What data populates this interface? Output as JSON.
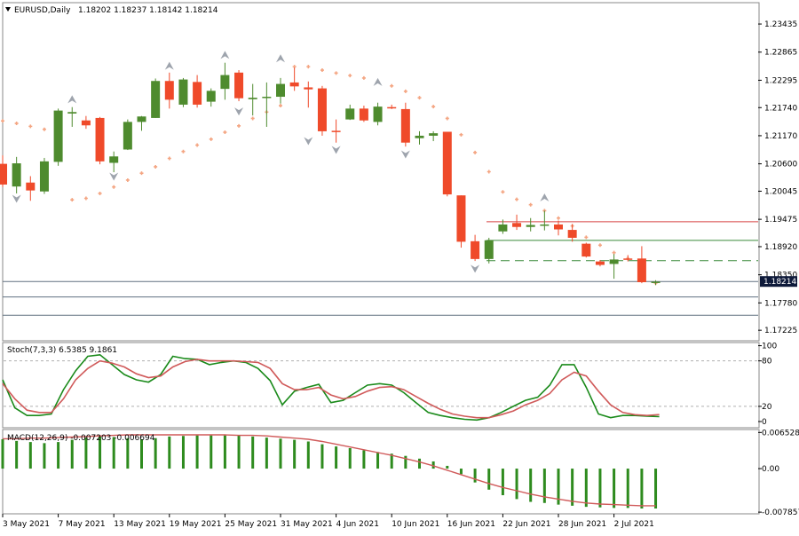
{
  "colors": {
    "bull": "#4e8b2e",
    "bear": "#ef4a2a",
    "sar": "#f4a582",
    "fractal": "#9ea4ad",
    "stoch_main": "#1a8a1a",
    "stoch_signal": "#d05a5a",
    "macd_hist": "#2e8b1e",
    "macd_signal": "#d05a5a",
    "hline_red": "#d64040",
    "hline_green": "#3a8a3a",
    "hline_dash": "#3a8a3a",
    "hline_gray": "#607080"
  },
  "header": {
    "symbol": "EURUSD,Daily",
    "ohlc": "1.18202 1.18237 1.18142 1.18214",
    "dropdown_icon": "triangle-down-icon"
  },
  "chart_data": [
    {
      "type": "candlestick",
      "title": "EURUSD,Daily",
      "ylim": [
        1.1703,
        1.2385
      ],
      "y_ticks": [
        "1.23435",
        "1.22865",
        "1.22295",
        "1.21740",
        "1.21170",
        "1.20600",
        "1.20045",
        "1.19475",
        "1.18920",
        "1.18350",
        "1.17780",
        "1.17225"
      ],
      "current_price": "1.18214",
      "x_tick_labels": [
        "3 May 2021",
        "7 May 2021",
        "13 May 2021",
        "19 May 2021",
        "25 May 2021",
        "31 May 2021",
        "4 Jun 2021",
        "10 Jun 2021",
        "16 Jun 2021",
        "22 Jun 2021",
        "28 Jun 2021",
        "2 Jul 2021"
      ],
      "candles": [
        {
          "o": 1.206,
          "h": 1.2077,
          "l": 1.2013,
          "c": 1.2018
        },
        {
          "o": 1.2014,
          "h": 1.2074,
          "l": 1.2,
          "c": 1.2061
        },
        {
          "o": 1.2022,
          "h": 1.2035,
          "l": 1.1985,
          "c": 1.2006
        },
        {
          "o": 1.2004,
          "h": 1.2072,
          "l": 1.1999,
          "c": 1.2065
        },
        {
          "o": 1.2064,
          "h": 1.2172,
          "l": 1.2056,
          "c": 1.2168
        },
        {
          "o": 1.2162,
          "h": 1.2175,
          "l": 1.2135,
          "c": 1.2165
        },
        {
          "o": 1.2148,
          "h": 1.2157,
          "l": 1.2131,
          "c": 1.2138
        },
        {
          "o": 1.2153,
          "h": 1.2155,
          "l": 1.2059,
          "c": 1.2065
        },
        {
          "o": 1.2062,
          "h": 1.2085,
          "l": 1.2043,
          "c": 1.2075
        },
        {
          "o": 1.2089,
          "h": 1.215,
          "l": 1.2088,
          "c": 1.2145
        },
        {
          "o": 1.2145,
          "h": 1.2157,
          "l": 1.2127,
          "c": 1.2156
        },
        {
          "o": 1.2153,
          "h": 1.2233,
          "l": 1.2153,
          "c": 1.2228
        },
        {
          "o": 1.2228,
          "h": 1.2245,
          "l": 1.2172,
          "c": 1.219
        },
        {
          "o": 1.218,
          "h": 1.2234,
          "l": 1.2175,
          "c": 1.2231
        },
        {
          "o": 1.2226,
          "h": 1.224,
          "l": 1.2174,
          "c": 1.218
        },
        {
          "o": 1.2186,
          "h": 1.2213,
          "l": 1.2176,
          "c": 1.2208
        },
        {
          "o": 1.2212,
          "h": 1.2265,
          "l": 1.219,
          "c": 1.224
        },
        {
          "o": 1.2245,
          "h": 1.225,
          "l": 1.2187,
          "c": 1.2193
        },
        {
          "o": 1.2191,
          "h": 1.2222,
          "l": 1.2158,
          "c": 1.2194
        },
        {
          "o": 1.2196,
          "h": 1.2225,
          "l": 1.2135,
          "c": 1.2196
        },
        {
          "o": 1.2196,
          "h": 1.2234,
          "l": 1.2182,
          "c": 1.2222
        },
        {
          "o": 1.2225,
          "h": 1.2255,
          "l": 1.2208,
          "c": 1.2217
        },
        {
          "o": 1.2215,
          "h": 1.2227,
          "l": 1.2174,
          "c": 1.2211
        },
        {
          "o": 1.2213,
          "h": 1.2218,
          "l": 1.2117,
          "c": 1.2126
        },
        {
          "o": 1.2127,
          "h": 1.215,
          "l": 1.2103,
          "c": 1.2125
        },
        {
          "o": 1.215,
          "h": 1.218,
          "l": 1.2149,
          "c": 1.2172
        },
        {
          "o": 1.2172,
          "h": 1.2178,
          "l": 1.2145,
          "c": 1.2148
        },
        {
          "o": 1.2145,
          "h": 1.2184,
          "l": 1.2138,
          "c": 1.2176
        },
        {
          "o": 1.2175,
          "h": 1.218,
          "l": 1.2171,
          "c": 1.2174
        },
        {
          "o": 1.2171,
          "h": 1.2184,
          "l": 1.2095,
          "c": 1.2103
        },
        {
          "o": 1.2112,
          "h": 1.2126,
          "l": 1.2099,
          "c": 1.2117
        },
        {
          "o": 1.2117,
          "h": 1.2126,
          "l": 1.2106,
          "c": 1.2122
        },
        {
          "o": 1.2125,
          "h": 1.2125,
          "l": 1.1994,
          "c": 1.1998
        },
        {
          "o": 1.1996,
          "h": 1.1996,
          "l": 1.189,
          "c": 1.1902
        },
        {
          "o": 1.1903,
          "h": 1.1916,
          "l": 1.1863,
          "c": 1.1867
        },
        {
          "o": 1.1867,
          "h": 1.191,
          "l": 1.1858,
          "c": 1.1905
        },
        {
          "o": 1.1923,
          "h": 1.1947,
          "l": 1.1918,
          "c": 1.1937
        },
        {
          "o": 1.194,
          "h": 1.1957,
          "l": 1.1926,
          "c": 1.1932
        },
        {
          "o": 1.1932,
          "h": 1.195,
          "l": 1.1923,
          "c": 1.1936
        },
        {
          "o": 1.1935,
          "h": 1.1965,
          "l": 1.1925,
          "c": 1.1937
        },
        {
          "o": 1.1937,
          "h": 1.1945,
          "l": 1.1915,
          "c": 1.1927
        },
        {
          "o": 1.1926,
          "h": 1.1938,
          "l": 1.1902,
          "c": 1.191
        },
        {
          "o": 1.1898,
          "h": 1.19,
          "l": 1.187,
          "c": 1.1872
        },
        {
          "o": 1.1862,
          "h": 1.1865,
          "l": 1.1852,
          "c": 1.1855
        },
        {
          "o": 1.1857,
          "h": 1.1877,
          "l": 1.1827,
          "c": 1.1866
        },
        {
          "o": 1.1868,
          "h": 1.1875,
          "l": 1.1862,
          "c": 1.1866
        },
        {
          "o": 1.1868,
          "h": 1.1893,
          "l": 1.1818,
          "c": 1.182
        },
        {
          "o": 1.182,
          "h": 1.1824,
          "l": 1.1814,
          "c": 1.1821
        }
      ],
      "parabolic_sar": [
        [
          0,
          1.2147
        ],
        [
          1,
          1.2142
        ],
        [
          2,
          1.2136
        ],
        [
          3,
          1.213
        ],
        [
          4,
          1.212
        ],
        [
          5,
          1.1987
        ],
        [
          6,
          1.199
        ],
        [
          7,
          1.2
        ],
        [
          8,
          1.2013
        ],
        [
          9,
          1.2027
        ],
        [
          10,
          1.2041
        ],
        [
          11,
          1.2054
        ],
        [
          12,
          1.2071
        ],
        [
          13,
          1.2085
        ],
        [
          14,
          1.2098
        ],
        [
          15,
          1.211
        ],
        [
          16,
          1.2124
        ],
        [
          17,
          1.2137
        ],
        [
          18,
          1.2152
        ],
        [
          19,
          1.2165
        ],
        [
          20,
          1.2178
        ],
        [
          21,
          1.2257
        ],
        [
          22,
          1.2257
        ],
        [
          23,
          1.225
        ],
        [
          24,
          1.2244
        ],
        [
          25,
          1.2239
        ],
        [
          26,
          1.2234
        ],
        [
          27,
          1.2227
        ],
        [
          28,
          1.2218
        ],
        [
          29,
          1.2207
        ],
        [
          30,
          1.2194
        ],
        [
          31,
          1.2176
        ],
        [
          32,
          1.2152
        ],
        [
          33,
          1.2119
        ],
        [
          34,
          1.2083
        ],
        [
          35,
          1.2044
        ],
        [
          36,
          1.2003
        ],
        [
          37,
          1.1988
        ],
        [
          38,
          1.1977
        ],
        [
          39,
          1.1965
        ],
        [
          40,
          1.195
        ],
        [
          41,
          1.1934
        ],
        [
          42,
          1.1911
        ],
        [
          43,
          1.1895
        ],
        [
          44,
          1.188
        ],
        [
          45,
          1.1868
        ],
        [
          46,
          1.1856
        ],
        [
          47,
          1.1818
        ]
      ],
      "fractals_up": [
        [
          5,
          1.219
        ],
        [
          12,
          1.2258
        ],
        [
          16,
          1.228
        ],
        [
          20,
          1.2273
        ],
        [
          27,
          1.2225
        ],
        [
          39,
          1.1991
        ]
      ],
      "fractals_down": [
        [
          1,
          1.199
        ],
        [
          8,
          1.2035
        ],
        [
          17,
          1.2167
        ],
        [
          22,
          1.2107
        ],
        [
          24,
          1.2089
        ],
        [
          29,
          1.208
        ],
        [
          34,
          1.1848
        ]
      ],
      "hlines": [
        {
          "price": 1.19426,
          "style": "red"
        },
        {
          "price": 1.19048,
          "style": "green"
        },
        {
          "price": 1.18635,
          "style": "dash"
        },
        {
          "price": 1.18214,
          "style": "gray"
        },
        {
          "price": 1.179,
          "style": "gray"
        },
        {
          "price": 1.1753,
          "style": "gray"
        }
      ]
    },
    {
      "type": "line",
      "title": "Stoch(7,3,3) 6.5385 9.1861",
      "ylim": [
        -7,
        103
      ],
      "y_ticks": [
        "100",
        "80",
        "20",
        "0"
      ],
      "levels": [
        80,
        20
      ],
      "series": [
        {
          "name": "main",
          "values": [
            55,
            18,
            8,
            8,
            10,
            42,
            67,
            86,
            88,
            75,
            62,
            55,
            52,
            62,
            86,
            83,
            82,
            75,
            78,
            80,
            78,
            70,
            54,
            22,
            40,
            45,
            49,
            25,
            28,
            38,
            48,
            50,
            48,
            38,
            25,
            12,
            8,
            5,
            3,
            2,
            5,
            12,
            20,
            28,
            32,
            48,
            75,
            75,
            45,
            10,
            5,
            8,
            8,
            7,
            6.5
          ]
        },
        {
          "name": "signal",
          "values": [
            50,
            30,
            15,
            12,
            12,
            30,
            55,
            70,
            80,
            77,
            72,
            63,
            58,
            60,
            72,
            79,
            82,
            80,
            80,
            80,
            79,
            78,
            70,
            50,
            42,
            42,
            45,
            35,
            30,
            33,
            40,
            45,
            46,
            42,
            33,
            24,
            16,
            10,
            7,
            5,
            5,
            9,
            14,
            22,
            28,
            37,
            55,
            65,
            60,
            40,
            22,
            12,
            9,
            8,
            9.2
          ]
        }
      ],
      "x_span": 48
    },
    {
      "type": "bar",
      "title": "MACD(12,26,9) -0.007203 -0.006694",
      "ylim": [
        -0.008,
        0.0069
      ],
      "y_ticks": [
        "0.006528",
        "0.00",
        "-0.007857"
      ],
      "histogram": [
        0.0053,
        0.005,
        0.0048,
        0.0046,
        0.0048,
        0.0052,
        0.0056,
        0.0058,
        0.0057,
        0.0055,
        0.0053,
        0.0055,
        0.0058,
        0.0059,
        0.006,
        0.006,
        0.006,
        0.006,
        0.0058,
        0.0056,
        0.0054,
        0.0052,
        0.0049,
        0.0044,
        0.004,
        0.0037,
        0.0033,
        0.003,
        0.0027,
        0.0023,
        0.0018,
        0.0013,
        0.0005,
        -0.001,
        -0.0025,
        -0.0038,
        -0.0048,
        -0.0055,
        -0.006,
        -0.0062,
        -0.0065,
        -0.0067,
        -0.0069,
        -0.007,
        -0.0071,
        -0.0071,
        -0.0072,
        -0.0072
      ],
      "signal": [
        0.0054,
        0.0054,
        0.0055,
        0.0055,
        0.0056,
        0.0057,
        0.0058,
        0.0059,
        0.006,
        0.0061,
        0.0061,
        0.0061,
        0.0061,
        0.0061,
        0.0061,
        0.0061,
        0.0061,
        0.006,
        0.006,
        0.0059,
        0.0057,
        0.0055,
        0.0053,
        0.0049,
        0.0044,
        0.0039,
        0.0034,
        0.0029,
        0.0024,
        0.0018,
        0.0012,
        0.0005,
        -0.0003,
        -0.0011,
        -0.0019,
        -0.0027,
        -0.0034,
        -0.004,
        -0.0046,
        -0.0051,
        -0.0055,
        -0.0059,
        -0.0062,
        -0.0064,
        -0.0065,
        -0.0066,
        -0.0067,
        -0.0067
      ]
    }
  ]
}
